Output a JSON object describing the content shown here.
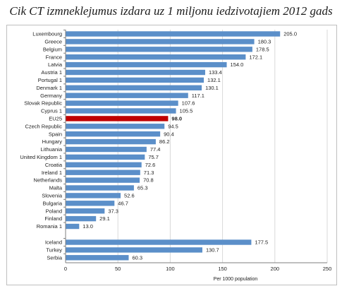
{
  "chart_data": {
    "type": "bar",
    "orientation": "horizontal",
    "title": "Cik CT izmneklejumus izdara uz 1 miljonu iedzivotajiem 2012 gads",
    "xlabel": "Per 1000 population",
    "xlim": [
      0,
      250
    ],
    "xticks": [
      "0",
      "50",
      "100",
      "150",
      "200",
      "250"
    ],
    "grid": "vertical",
    "colors": {
      "bar": "#5b8fc9",
      "highlight": "#c00000"
    },
    "highlight": "EU25",
    "groups": [
      {
        "categories": [
          "Luxembourg",
          "Greece",
          "Belgium",
          "France",
          "Latvia",
          "Austria 1",
          "Portugal 1",
          "Denmark 1",
          "Germany",
          "Slovak Republic",
          "Cyprus 1",
          "EU25",
          "Czech Republic",
          "Spain",
          "Hungary",
          "Lithuania",
          "United Kingdom 1",
          "Croatia",
          "Ireland 1",
          "Netherlands",
          "Malta",
          "Slovenia",
          "Bulgaria",
          "Poland",
          "Finland",
          "Romania 1"
        ],
        "values": [
          205.0,
          180.3,
          178.5,
          172.1,
          154.0,
          133.4,
          132.1,
          130.1,
          117.1,
          107.6,
          105.5,
          98.0,
          94.5,
          90.4,
          86.2,
          77.4,
          75.7,
          72.6,
          71.3,
          70.8,
          65.3,
          52.6,
          46.7,
          37.3,
          29.1,
          13.0
        ],
        "labels": [
          "205.0",
          "180.3",
          "178.5",
          "172.1",
          "154.0",
          "133.4",
          "132.1",
          "130.1",
          "117.1",
          "107.6",
          "105.5",
          "98.0",
          "94.5",
          "90.4",
          "86.2",
          "77.4",
          "75.7",
          "72.6",
          "71.3",
          "70.8",
          "65.3",
          "52.6",
          "46.7",
          "37.3",
          "29.1",
          "13.0"
        ]
      },
      {
        "categories": [
          "Iceland",
          "Turkey",
          "Serbia"
        ],
        "values": [
          177.5,
          130.7,
          60.3
        ],
        "labels": [
          "177.5",
          "130.7",
          "60.3"
        ]
      }
    ]
  }
}
